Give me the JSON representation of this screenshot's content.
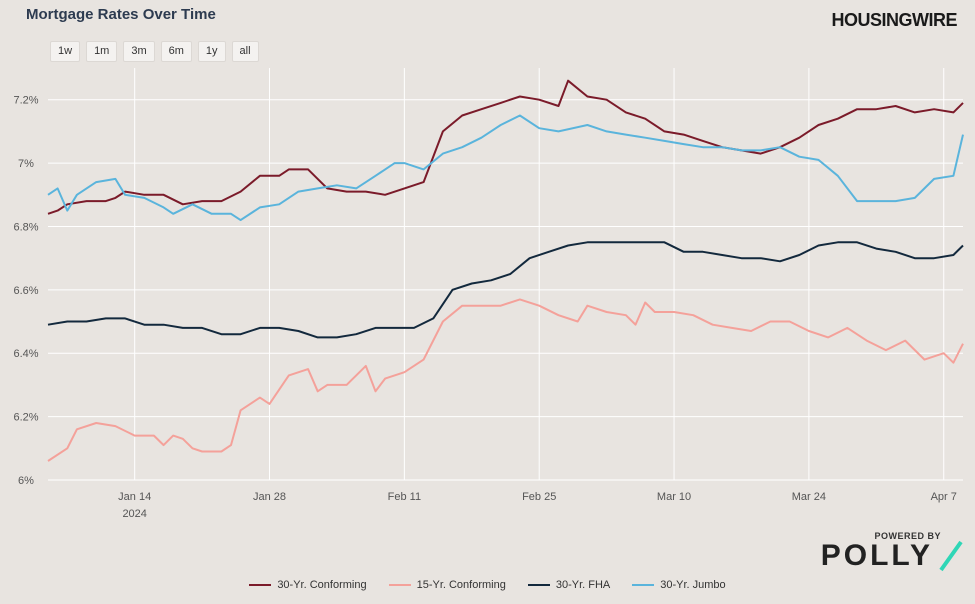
{
  "header": {
    "title": "Mortgage Rates Over Time",
    "brand": "HOUSINGWIRE"
  },
  "range_buttons": [
    "1w",
    "1m",
    "3m",
    "6m",
    "1y",
    "all"
  ],
  "footer": {
    "powered_by": "POWERED BY",
    "logo_text": "POLLY"
  },
  "colors": {
    "background": "#e8e4e0",
    "gridline": "#ffffff",
    "conforming30": "#7b1b2a",
    "conforming15": "#f4a19a",
    "fha30": "#13293d",
    "jumbo30": "#5ab4dc",
    "polly_accent": "#2fd6b6"
  },
  "chart_data": {
    "type": "line",
    "title": "Mortgage Rates Over Time",
    "x_ticks": [
      {
        "date": "2024-01-14",
        "label": "Jan 14",
        "sublabel": "2024"
      },
      {
        "date": "2024-01-28",
        "label": "Jan 28"
      },
      {
        "date": "2024-02-11",
        "label": "Feb 11"
      },
      {
        "date": "2024-02-25",
        "label": "Feb 25"
      },
      {
        "date": "2024-03-10",
        "label": "Mar 10"
      },
      {
        "date": "2024-03-24",
        "label": "Mar 24"
      },
      {
        "date": "2024-04-07",
        "label": "Apr 7"
      }
    ],
    "xlim": [
      "2024-01-05",
      "2024-04-09"
    ],
    "ylim": [
      6.0,
      7.3
    ],
    "y_ticks": [
      {
        "value": 6.0,
        "label": "6%"
      },
      {
        "value": 6.2,
        "label": "6.2%"
      },
      {
        "value": 6.4,
        "label": "6.4%"
      },
      {
        "value": 6.6,
        "label": "6.6%"
      },
      {
        "value": 6.8,
        "label": "6.8%"
      },
      {
        "value": 7.0,
        "label": "7%"
      },
      {
        "value": 7.2,
        "label": "7.2%"
      }
    ],
    "grid": true,
    "legend_position": "bottom",
    "series": [
      {
        "name": "30-Yr. Conforming",
        "color": "#7b1b2a",
        "x": [
          "2024-01-05",
          "2024-01-06",
          "2024-01-07",
          "2024-01-09",
          "2024-01-11",
          "2024-01-12",
          "2024-01-13",
          "2024-01-15",
          "2024-01-17",
          "2024-01-19",
          "2024-01-21",
          "2024-01-23",
          "2024-01-25",
          "2024-01-27",
          "2024-01-29",
          "2024-01-30",
          "2024-02-01",
          "2024-02-03",
          "2024-02-05",
          "2024-02-07",
          "2024-02-09",
          "2024-02-11",
          "2024-02-13",
          "2024-02-15",
          "2024-02-17",
          "2024-02-19",
          "2024-02-21",
          "2024-02-23",
          "2024-02-25",
          "2024-02-27",
          "2024-02-28",
          "2024-03-01",
          "2024-03-03",
          "2024-03-05",
          "2024-03-07",
          "2024-03-09",
          "2024-03-11",
          "2024-03-13",
          "2024-03-15",
          "2024-03-17",
          "2024-03-19",
          "2024-03-21",
          "2024-03-23",
          "2024-03-25",
          "2024-03-27",
          "2024-03-29",
          "2024-03-31",
          "2024-04-02",
          "2024-04-04",
          "2024-04-06",
          "2024-04-08",
          "2024-04-09"
        ],
        "y": [
          6.84,
          6.85,
          6.87,
          6.88,
          6.88,
          6.89,
          6.91,
          6.9,
          6.9,
          6.87,
          6.88,
          6.88,
          6.91,
          6.96,
          6.96,
          6.98,
          6.98,
          6.92,
          6.91,
          6.91,
          6.9,
          6.92,
          6.94,
          7.1,
          7.15,
          7.17,
          7.19,
          7.21,
          7.2,
          7.18,
          7.26,
          7.21,
          7.2,
          7.16,
          7.14,
          7.1,
          7.09,
          7.07,
          7.05,
          7.04,
          7.03,
          7.05,
          7.08,
          7.12,
          7.14,
          7.17,
          7.17,
          7.18,
          7.16,
          7.17,
          7.16,
          7.19
        ]
      },
      {
        "name": "15-Yr. Conforming",
        "color": "#f4a19a",
        "x": [
          "2024-01-05",
          "2024-01-07",
          "2024-01-08",
          "2024-01-10",
          "2024-01-12",
          "2024-01-14",
          "2024-01-16",
          "2024-01-17",
          "2024-01-18",
          "2024-01-19",
          "2024-01-20",
          "2024-01-21",
          "2024-01-23",
          "2024-01-24",
          "2024-01-25",
          "2024-01-27",
          "2024-01-28",
          "2024-01-30",
          "2024-02-01",
          "2024-02-02",
          "2024-02-03",
          "2024-02-05",
          "2024-02-06",
          "2024-02-07",
          "2024-02-08",
          "2024-02-09",
          "2024-02-11",
          "2024-02-13",
          "2024-02-15",
          "2024-02-17",
          "2024-02-19",
          "2024-02-21",
          "2024-02-23",
          "2024-02-25",
          "2024-02-27",
          "2024-02-29",
          "2024-03-01",
          "2024-03-03",
          "2024-03-05",
          "2024-03-06",
          "2024-03-07",
          "2024-03-08",
          "2024-03-10",
          "2024-03-12",
          "2024-03-14",
          "2024-03-16",
          "2024-03-18",
          "2024-03-20",
          "2024-03-22",
          "2024-03-24",
          "2024-03-26",
          "2024-03-28",
          "2024-03-30",
          "2024-04-01",
          "2024-04-03",
          "2024-04-05",
          "2024-04-07",
          "2024-04-08",
          "2024-04-09"
        ],
        "y": [
          6.06,
          6.1,
          6.16,
          6.18,
          6.17,
          6.14,
          6.14,
          6.11,
          6.14,
          6.13,
          6.1,
          6.09,
          6.09,
          6.11,
          6.22,
          6.26,
          6.24,
          6.33,
          6.35,
          6.28,
          6.3,
          6.3,
          6.33,
          6.36,
          6.28,
          6.32,
          6.34,
          6.38,
          6.5,
          6.55,
          6.55,
          6.55,
          6.57,
          6.55,
          6.52,
          6.5,
          6.55,
          6.53,
          6.52,
          6.49,
          6.56,
          6.53,
          6.53,
          6.52,
          6.49,
          6.48,
          6.47,
          6.5,
          6.5,
          6.47,
          6.45,
          6.48,
          6.44,
          6.41,
          6.44,
          6.38,
          6.4,
          6.37,
          6.43
        ]
      },
      {
        "name": "30-Yr. FHA",
        "color": "#13293d",
        "x": [
          "2024-01-05",
          "2024-01-07",
          "2024-01-09",
          "2024-01-11",
          "2024-01-13",
          "2024-01-15",
          "2024-01-17",
          "2024-01-19",
          "2024-01-21",
          "2024-01-23",
          "2024-01-25",
          "2024-01-27",
          "2024-01-29",
          "2024-01-31",
          "2024-02-02",
          "2024-02-04",
          "2024-02-06",
          "2024-02-08",
          "2024-02-10",
          "2024-02-12",
          "2024-02-14",
          "2024-02-16",
          "2024-02-18",
          "2024-02-20",
          "2024-02-22",
          "2024-02-24",
          "2024-02-26",
          "2024-02-28",
          "2024-03-01",
          "2024-03-03",
          "2024-03-05",
          "2024-03-07",
          "2024-03-09",
          "2024-03-11",
          "2024-03-13",
          "2024-03-15",
          "2024-03-17",
          "2024-03-19",
          "2024-03-21",
          "2024-03-23",
          "2024-03-25",
          "2024-03-27",
          "2024-03-29",
          "2024-03-31",
          "2024-04-02",
          "2024-04-04",
          "2024-04-06",
          "2024-04-08",
          "2024-04-09"
        ],
        "y": [
          6.49,
          6.5,
          6.5,
          6.51,
          6.51,
          6.49,
          6.49,
          6.48,
          6.48,
          6.46,
          6.46,
          6.48,
          6.48,
          6.47,
          6.45,
          6.45,
          6.46,
          6.48,
          6.48,
          6.48,
          6.51,
          6.6,
          6.62,
          6.63,
          6.65,
          6.7,
          6.72,
          6.74,
          6.75,
          6.75,
          6.75,
          6.75,
          6.75,
          6.72,
          6.72,
          6.71,
          6.7,
          6.7,
          6.69,
          6.71,
          6.74,
          6.75,
          6.75,
          6.73,
          6.72,
          6.7,
          6.7,
          6.71,
          6.74
        ]
      },
      {
        "name": "30-Yr. Jumbo",
        "color": "#5ab4dc",
        "x": [
          "2024-01-05",
          "2024-01-06",
          "2024-01-07",
          "2024-01-08",
          "2024-01-10",
          "2024-01-12",
          "2024-01-13",
          "2024-01-15",
          "2024-01-17",
          "2024-01-18",
          "2024-01-20",
          "2024-01-22",
          "2024-01-24",
          "2024-01-25",
          "2024-01-27",
          "2024-01-29",
          "2024-01-31",
          "2024-02-02",
          "2024-02-04",
          "2024-02-06",
          "2024-02-08",
          "2024-02-10",
          "2024-02-11",
          "2024-02-13",
          "2024-02-15",
          "2024-02-17",
          "2024-02-19",
          "2024-02-21",
          "2024-02-23",
          "2024-02-25",
          "2024-02-27",
          "2024-03-01",
          "2024-03-03",
          "2024-03-05",
          "2024-03-07",
          "2024-03-09",
          "2024-03-11",
          "2024-03-13",
          "2024-03-15",
          "2024-03-17",
          "2024-03-19",
          "2024-03-21",
          "2024-03-23",
          "2024-03-25",
          "2024-03-27",
          "2024-03-29",
          "2024-03-31",
          "2024-04-02",
          "2024-04-04",
          "2024-04-06",
          "2024-04-08",
          "2024-04-09"
        ],
        "y": [
          6.9,
          6.92,
          6.85,
          6.9,
          6.94,
          6.95,
          6.9,
          6.89,
          6.86,
          6.84,
          6.87,
          6.84,
          6.84,
          6.82,
          6.86,
          6.87,
          6.91,
          6.92,
          6.93,
          6.92,
          6.96,
          7.0,
          7.0,
          6.98,
          7.03,
          7.05,
          7.08,
          7.12,
          7.15,
          7.11,
          7.1,
          7.12,
          7.1,
          7.09,
          7.08,
          7.07,
          7.06,
          7.05,
          7.05,
          7.04,
          7.04,
          7.05,
          7.02,
          7.01,
          6.96,
          6.88,
          6.88,
          6.88,
          6.89,
          6.95,
          6.96,
          7.09
        ]
      }
    ]
  }
}
